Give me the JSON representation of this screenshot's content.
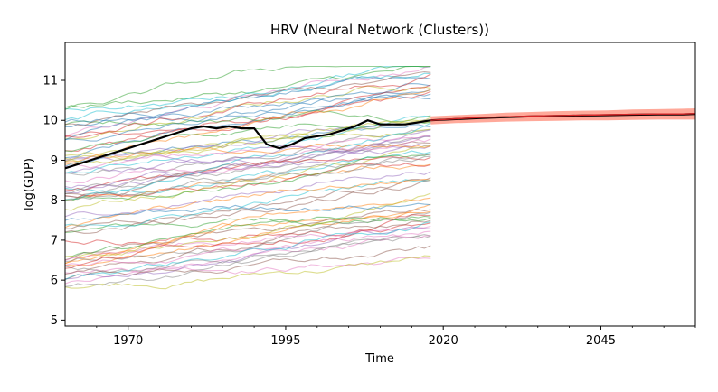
{
  "chart_data": {
    "type": "line",
    "title": "HRV (Neural Network (Clusters))",
    "xlabel": "Time",
    "ylabel": "log(GDP)",
    "xlim": [
      1960,
      2060
    ],
    "ylim": [
      4.85,
      11.95
    ],
    "x_ticks": [
      1970,
      1995,
      2020,
      2045
    ],
    "x_tick_labels": [
      "1970",
      "1995",
      "2020",
      "2045"
    ],
    "y_ticks": [
      5,
      6,
      7,
      8,
      9,
      10,
      11
    ],
    "y_tick_labels": [
      "5",
      "6",
      "7",
      "8",
      "9",
      "10",
      "11"
    ],
    "grid": false,
    "legend": "none",
    "background_series": {
      "description_count": 70,
      "x_start": 1960,
      "x_end": 2018,
      "value_range": [
        5.3,
        11.5
      ],
      "palette": [
        "#1f77b4",
        "#ff7f0e",
        "#2ca02c",
        "#d62728",
        "#9467bd",
        "#8c564b",
        "#e377c2",
        "#7f7f7f",
        "#bcbd22",
        "#17becf"
      ],
      "opacity": 0.5
    },
    "series": [
      {
        "role": "target-history",
        "color": "#000000",
        "x": [
          1960,
          1962,
          1964,
          1966,
          1968,
          1970,
          1972,
          1974,
          1976,
          1978,
          1980,
          1982,
          1984,
          1986,
          1988,
          1990,
          1992,
          1994,
          1996,
          1998,
          2000,
          2002,
          2004,
          2006,
          2008,
          2010,
          2012,
          2014,
          2016,
          2018
        ],
        "values": [
          8.8,
          8.9,
          9.0,
          9.1,
          9.2,
          9.3,
          9.4,
          9.5,
          9.6,
          9.7,
          9.8,
          9.85,
          9.8,
          9.85,
          9.8,
          9.8,
          9.4,
          9.3,
          9.4,
          9.55,
          9.6,
          9.65,
          9.75,
          9.85,
          10.0,
          9.9,
          9.9,
          9.9,
          9.95,
          10.0
        ]
      },
      {
        "role": "forecast-median",
        "color": "#000000",
        "x": [
          2018,
          2022,
          2026,
          2030,
          2034,
          2038,
          2042,
          2046,
          2050,
          2054,
          2058,
          2060
        ],
        "values": [
          10.0,
          10.03,
          10.06,
          10.08,
          10.1,
          10.11,
          10.12,
          10.13,
          10.14,
          10.15,
          10.15,
          10.16
        ]
      },
      {
        "role": "forecast-red",
        "color": "#d62728",
        "x": [
          2018,
          2022,
          2026,
          2030,
          2034,
          2038,
          2042,
          2046,
          2050,
          2054,
          2058,
          2060
        ],
        "values": [
          10.0,
          10.04,
          10.07,
          10.09,
          10.11,
          10.12,
          10.13,
          10.14,
          10.15,
          10.16,
          10.16,
          10.17
        ]
      }
    ],
    "forecast_band": {
      "color": "#ff6347",
      "x": [
        2018,
        2022,
        2026,
        2030,
        2034,
        2038,
        2042,
        2046,
        2050,
        2054,
        2058,
        2060
      ],
      "lower": [
        9.9,
        9.93,
        9.95,
        9.97,
        9.98,
        9.99,
        10.0,
        10.0,
        10.01,
        10.02,
        10.02,
        10.02
      ],
      "upper": [
        10.1,
        10.13,
        10.16,
        10.19,
        10.21,
        10.23,
        10.24,
        10.25,
        10.27,
        10.28,
        10.29,
        10.3
      ]
    }
  }
}
